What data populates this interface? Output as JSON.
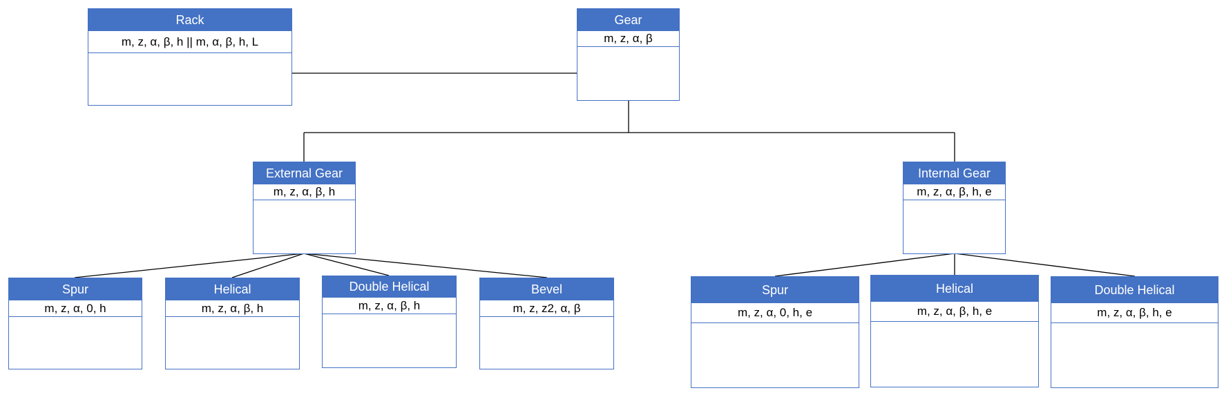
{
  "colors": {
    "header": "#4472c4",
    "border": "#4472c4",
    "connector": "#000000"
  },
  "nodes": {
    "rack": {
      "title": "Rack",
      "attributes": "m, z, α, β, h || m, α, β, h, L"
    },
    "gear": {
      "title": "Gear",
      "attributes": "m, z, α, β"
    },
    "external_gear": {
      "title": "External Gear",
      "attributes": "m, z, α, β, h"
    },
    "internal_gear": {
      "title": "Internal Gear",
      "attributes": "m, z, α, β, h, e"
    },
    "ext_spur": {
      "title": "Spur",
      "attributes": "m, z, α, 0, h"
    },
    "ext_helical": {
      "title": "Helical",
      "attributes": "m, z, α, β, h"
    },
    "ext_double_helical": {
      "title": "Double Helical",
      "attributes": "m, z, α, β, h"
    },
    "ext_bevel": {
      "title": "Bevel",
      "attributes": "m, z, z2, α, β"
    },
    "int_spur": {
      "title": "Spur",
      "attributes": "m, z, α, 0, h, e"
    },
    "int_helical": {
      "title": "Helical",
      "attributes": "m, z, α, β, h, e"
    },
    "int_double_helical": {
      "title": "Double Helical",
      "attributes": "m, z, α, β, h, e"
    }
  }
}
